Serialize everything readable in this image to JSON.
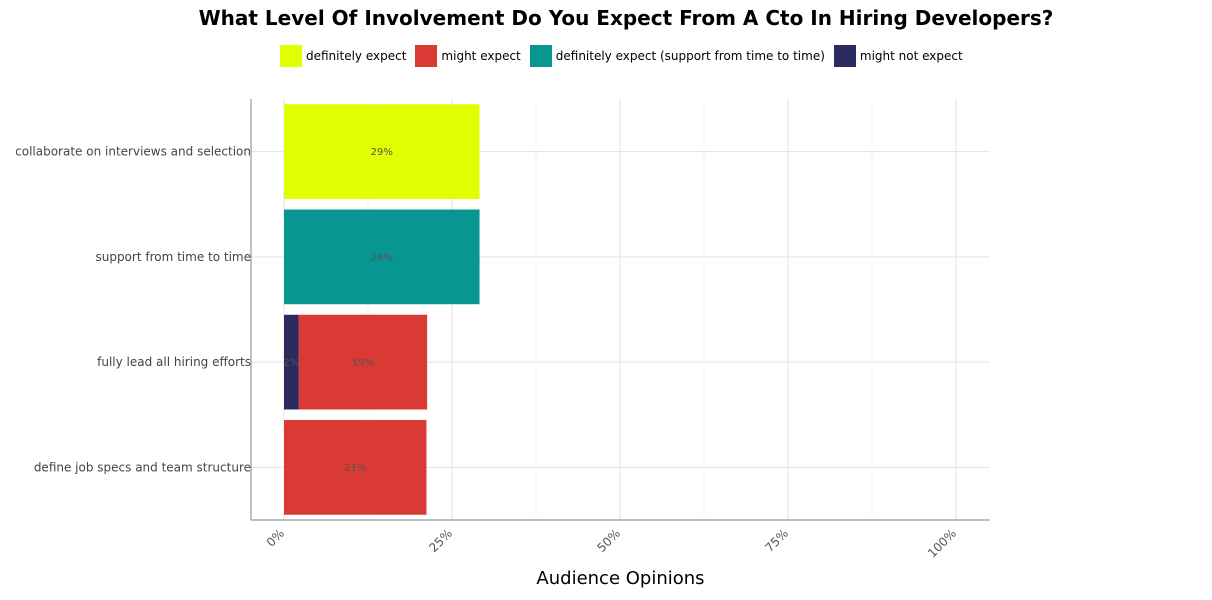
{
  "chart_data": {
    "type": "bar",
    "orientation": "horizontal",
    "stacked": true,
    "title": "What Level Of Involvement Do You Expect From A Cto In Hiring Developers?",
    "xlabel": "Audience Opinions",
    "ylabel": "",
    "xlim": [
      0,
      100
    ],
    "x_ticks": [
      "0%",
      "25%",
      "50%",
      "75%",
      "100%"
    ],
    "grid": true,
    "legend_position": "top",
    "categories": [
      "collaborate on interviews and selection",
      "support from time to time",
      "fully lead all hiring efforts",
      "define job specs and team structure"
    ],
    "series": [
      {
        "name": "might not expect",
        "color": "#2a2a5e",
        "values": [
          0,
          0,
          2.2,
          0
        ],
        "labels": [
          "",
          "",
          "2%",
          ""
        ]
      },
      {
        "name": "might expect",
        "color": "#db3a34",
        "values": [
          0,
          0,
          19.1,
          21.2
        ],
        "labels": [
          "",
          "",
          "19%",
          "21%"
        ]
      },
      {
        "name": "definitely expect (support from time to time)",
        "color": "#079691",
        "values": [
          0,
          29.1,
          0,
          0
        ],
        "labels": [
          "",
          "29%",
          "",
          ""
        ]
      },
      {
        "name": "definitely expect",
        "color": "#e0ff00",
        "values": [
          29.1,
          0,
          0,
          0
        ],
        "labels": [
          "29%",
          "",
          "",
          ""
        ]
      }
    ],
    "legend_order": [
      "definitely expect",
      "might expect",
      "definitely expect (support from time to time)",
      "might not expect"
    ]
  }
}
